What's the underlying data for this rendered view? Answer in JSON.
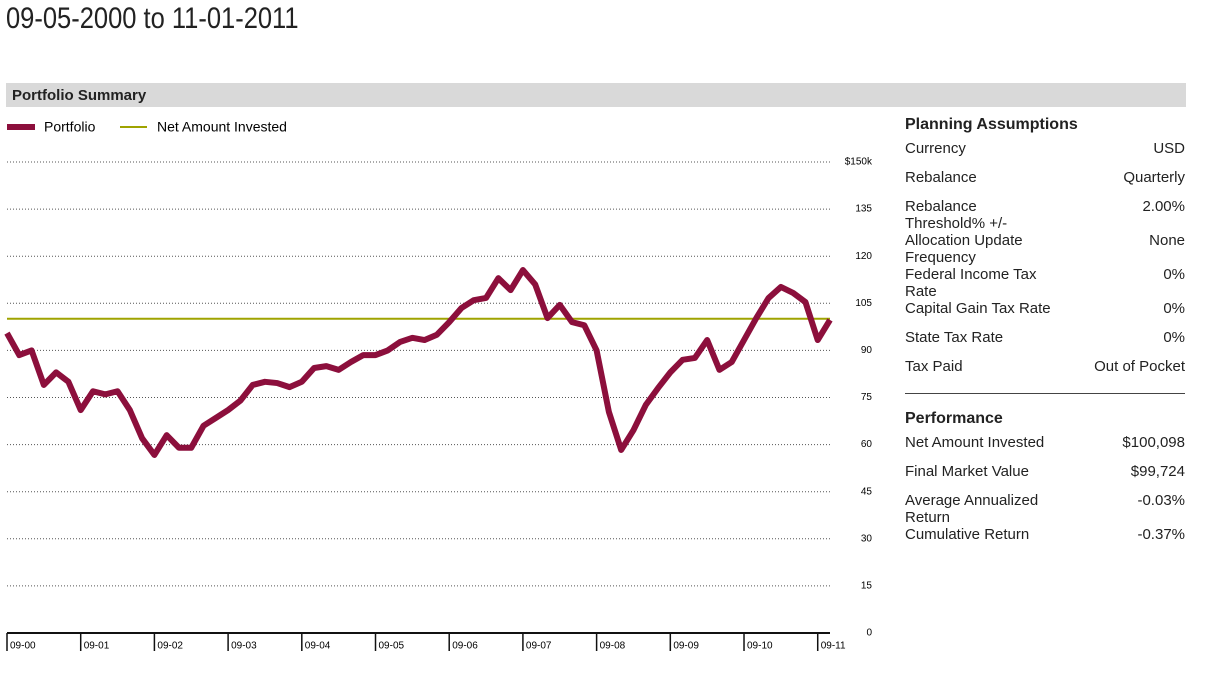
{
  "title": "09-05-2000 to 11-01-2011",
  "section_title": "Portfolio Summary",
  "chart_data": {
    "type": "line",
    "x": [
      "09-00",
      "11-00",
      "01-01",
      "03-01",
      "05-01",
      "07-01",
      "09-01",
      "11-01",
      "01-02",
      "03-02",
      "05-02",
      "07-02",
      "09-02",
      "11-02",
      "01-03",
      "03-03",
      "05-03",
      "07-03",
      "09-03",
      "11-03",
      "01-04",
      "03-04",
      "05-04",
      "07-04",
      "09-04",
      "11-04",
      "01-05",
      "03-05",
      "05-05",
      "07-05",
      "09-05",
      "11-05",
      "01-06",
      "03-06",
      "05-06",
      "07-06",
      "09-06",
      "11-06",
      "01-07",
      "03-07",
      "05-07",
      "07-07",
      "09-07",
      "11-07",
      "01-08",
      "03-08",
      "05-08",
      "07-08",
      "09-08",
      "11-08",
      "01-09",
      "03-09",
      "05-09",
      "07-09",
      "09-09",
      "11-09",
      "01-10",
      "03-10",
      "05-10",
      "07-10",
      "09-10",
      "11-10",
      "01-11",
      "03-11",
      "05-11",
      "07-11",
      "09-11",
      "11-11"
    ],
    "series": [
      {
        "name": "Portfolio",
        "color": "#8c0f3c",
        "values": [
          95.5,
          88.5,
          90,
          79,
          83,
          80,
          71,
          77,
          76,
          77,
          71,
          62,
          56.7,
          63,
          59,
          59,
          66,
          68.5,
          71,
          74,
          79,
          80,
          79.6,
          78.3,
          80,
          84.4,
          85,
          83.8,
          86.3,
          88.5,
          88.5,
          90,
          92.7,
          94,
          93.3,
          95,
          99,
          103.5,
          106,
          106.7,
          113,
          109.2,
          115.6,
          111,
          100.3,
          104.5,
          99,
          98,
          90,
          70.4,
          58.3,
          64.6,
          72.6,
          78,
          83,
          87,
          87.6,
          93.3,
          83.8,
          86.3,
          93.3,
          100.3,
          106.7,
          110.2,
          108.3,
          105.4,
          93.3,
          99.7
        ]
      }
    ],
    "reference_line": {
      "name": "Net Amount Invested",
      "color": "#9fa300",
      "value": 100.098
    },
    "xticks": [
      "09-00",
      "09-01",
      "09-02",
      "09-03",
      "09-04",
      "09-05",
      "09-06",
      "09-07",
      "09-08",
      "09-09",
      "09-10",
      "09-11"
    ],
    "ylim": [
      0,
      150
    ],
    "yticks": [
      0,
      15,
      30,
      45,
      60,
      75,
      90,
      105,
      120,
      135,
      {
        "value": 150,
        "label": "$150k"
      }
    ],
    "grid": true
  },
  "planning": {
    "title": "Planning Assumptions",
    "rows": [
      [
        "Currency",
        "USD"
      ],
      [
        "Rebalance",
        "Quarterly"
      ],
      [
        "Rebalance Threshold% +/-",
        "2.00%"
      ],
      [
        "Allocation Update Frequency",
        "None"
      ],
      [
        "Federal Income Tax Rate",
        "0%"
      ],
      [
        "Capital Gain Tax Rate",
        "0%"
      ],
      [
        "State Tax Rate",
        "0%"
      ],
      [
        "Tax Paid",
        "Out of Pocket"
      ]
    ]
  },
  "performance": {
    "title": "Performance",
    "rows": [
      [
        "Net Amount Invested",
        "$100,098"
      ],
      [
        "Final Market Value",
        "$99,724"
      ],
      [
        "Average Annualized Return",
        "-0.03%"
      ],
      [
        "Cumulative Return",
        "-0.37%"
      ]
    ]
  }
}
